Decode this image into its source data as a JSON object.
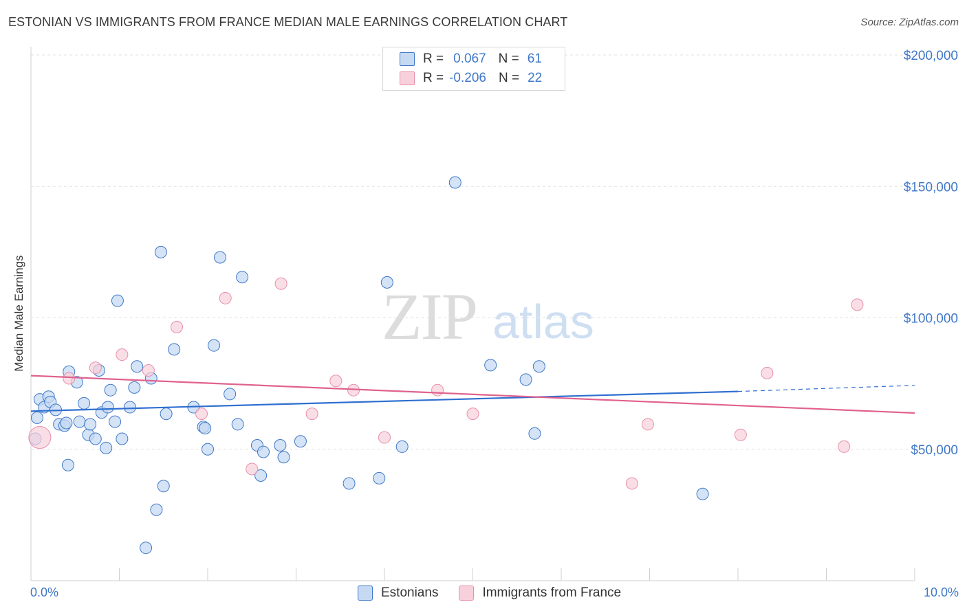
{
  "title": "ESTONIAN VS IMMIGRANTS FROM FRANCE MEDIAN MALE EARNINGS CORRELATION CHART",
  "source": "Source: ZipAtlas.com",
  "watermark": {
    "part1": "ZIP",
    "part2": "atlas"
  },
  "colors": {
    "blue": "#3f78c8",
    "blue_fill": "#c5d9f3",
    "blue_line": "#2f6fd0",
    "pink_fill": "#f8d0dc",
    "pink_stroke": "#e88fab",
    "pink_line": "#e0628e"
  },
  "legend": {
    "rows": [
      {
        "r_label": "R =",
        "r_value": "0.067",
        "n_label": "N =",
        "n_value": "61"
      },
      {
        "r_label": "R =",
        "r_value": "-0.206",
        "n_label": "N =",
        "n_value": "22"
      }
    ]
  },
  "bottom_legend": [
    "Estonians",
    "Immigrants from France"
  ],
  "chart_data": {
    "type": "scatter",
    "title": "ESTONIAN VS IMMIGRANTS FROM FRANCE MEDIAN MALE EARNINGS CORRELATION CHART",
    "xlabel": "",
    "ylabel": "Median Male Earnings",
    "xlim": [
      0,
      10
    ],
    "ylim": [
      0,
      205000
    ],
    "x_tick_labels": [
      "0.0%",
      "10.0%"
    ],
    "y_ticks": [
      50000,
      100000,
      150000,
      200000
    ],
    "y_tick_labels": [
      "$50,000",
      "$100,000",
      "$150,000",
      "$200,000"
    ],
    "grid": true,
    "legend_position": "top-center",
    "series": [
      {
        "name": "Estonians",
        "color": "#3f78c8",
        "trend": {
          "x0": 0.0,
          "y0": 64500,
          "x1": 8.0,
          "y1": 72000,
          "dashed_to_x": 10.0,
          "dashed_to_y": 74300
        },
        "points": [
          [
            0.05,
            54000
          ],
          [
            0.07,
            62000
          ],
          [
            0.1,
            69000
          ],
          [
            0.15,
            66000
          ],
          [
            0.2,
            70000
          ],
          [
            0.22,
            68000
          ],
          [
            0.28,
            65000
          ],
          [
            0.32,
            59500
          ],
          [
            0.38,
            59000
          ],
          [
            0.4,
            60000
          ],
          [
            0.42,
            44000
          ],
          [
            0.43,
            79500
          ],
          [
            0.52,
            75500
          ],
          [
            0.55,
            60500
          ],
          [
            0.6,
            67500
          ],
          [
            0.65,
            55500
          ],
          [
            0.67,
            59500
          ],
          [
            0.73,
            54000
          ],
          [
            0.77,
            80000
          ],
          [
            0.8,
            64000
          ],
          [
            0.85,
            50500
          ],
          [
            0.87,
            66000
          ],
          [
            0.9,
            72500
          ],
          [
            0.95,
            60500
          ],
          [
            0.98,
            106500
          ],
          [
            1.03,
            54000
          ],
          [
            1.12,
            66000
          ],
          [
            1.17,
            73500
          ],
          [
            1.2,
            81500
          ],
          [
            1.3,
            12500
          ],
          [
            1.36,
            77000
          ],
          [
            1.42,
            27000
          ],
          [
            1.47,
            125000
          ],
          [
            1.5,
            36000
          ],
          [
            1.53,
            63500
          ],
          [
            1.62,
            88000
          ],
          [
            1.84,
            66000
          ],
          [
            1.95,
            58500
          ],
          [
            1.97,
            58000
          ],
          [
            2.0,
            50000
          ],
          [
            2.07,
            89500
          ],
          [
            2.14,
            123000
          ],
          [
            2.25,
            71000
          ],
          [
            2.34,
            59500
          ],
          [
            2.39,
            115500
          ],
          [
            2.56,
            51500
          ],
          [
            2.6,
            40000
          ],
          [
            2.63,
            49000
          ],
          [
            2.82,
            51500
          ],
          [
            2.86,
            47000
          ],
          [
            3.05,
            53000
          ],
          [
            3.6,
            37000
          ],
          [
            3.94,
            39000
          ],
          [
            4.03,
            113500
          ],
          [
            4.2,
            51000
          ],
          [
            4.8,
            151500
          ],
          [
            5.2,
            82000
          ],
          [
            5.6,
            76500
          ],
          [
            5.7,
            56000
          ],
          [
            5.75,
            81500
          ],
          [
            7.6,
            33000
          ]
        ]
      },
      {
        "name": "Immigrants from France",
        "color": "#e88fab",
        "trend": {
          "x0": 0.0,
          "y0": 78000,
          "x1": 10.0,
          "y1": 63800
        },
        "points": [
          [
            0.1,
            54500
          ],
          [
            0.43,
            77000
          ],
          [
            0.73,
            81000
          ],
          [
            1.03,
            86000
          ],
          [
            1.33,
            80000
          ],
          [
            1.65,
            96500
          ],
          [
            1.93,
            63500
          ],
          [
            2.2,
            107500
          ],
          [
            2.5,
            42500
          ],
          [
            2.83,
            113000
          ],
          [
            3.18,
            63500
          ],
          [
            3.45,
            76000
          ],
          [
            3.65,
            72500
          ],
          [
            4.0,
            54500
          ],
          [
            4.6,
            72500
          ],
          [
            5.0,
            63500
          ],
          [
            6.8,
            37000
          ],
          [
            6.98,
            59500
          ],
          [
            8.03,
            55500
          ],
          [
            8.33,
            79000
          ],
          [
            9.2,
            51000
          ],
          [
            9.35,
            105000
          ]
        ]
      }
    ]
  }
}
